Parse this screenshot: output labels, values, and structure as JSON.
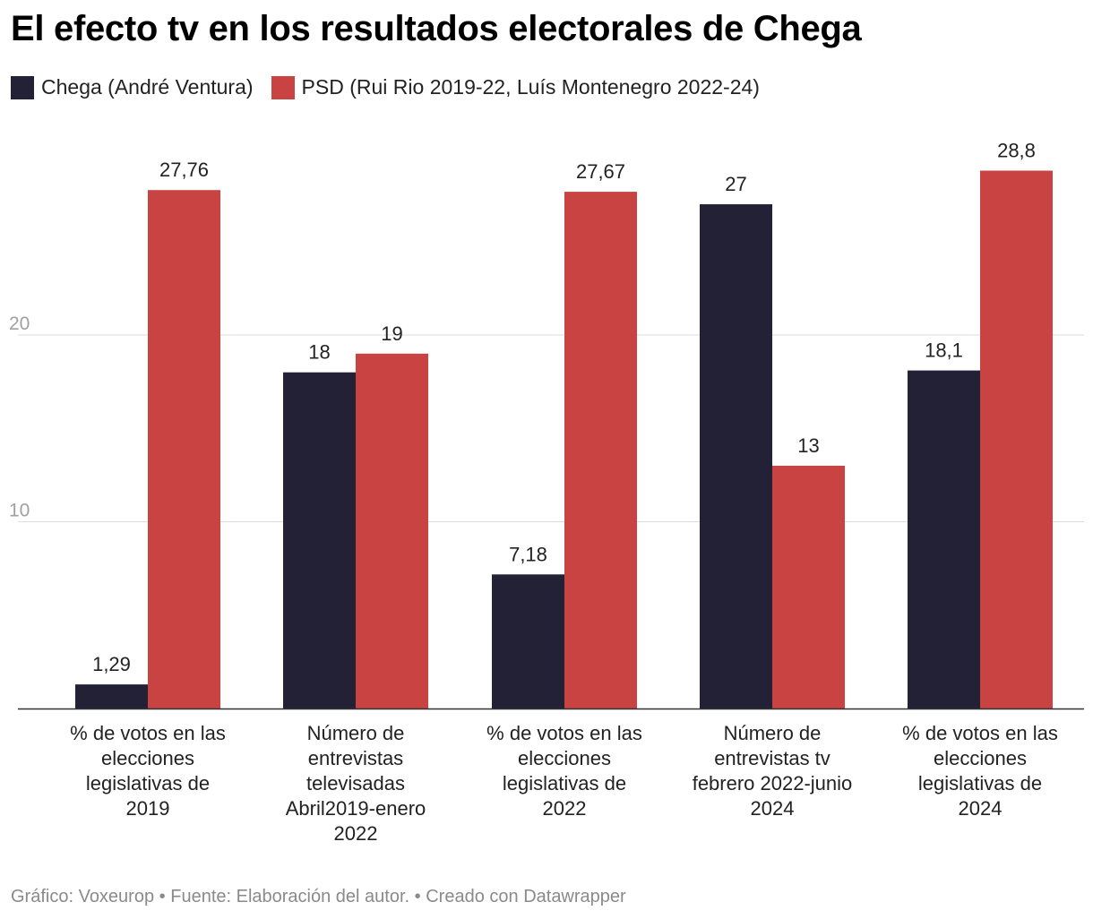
{
  "title": "El efecto tv en los resultados electorales de Chega",
  "footer": {
    "credit": "Gráfico: Voxeurop",
    "source": "Fuente: Elaboración del autor.",
    "tool": "Creado con Datawrapper",
    "separator": "•"
  },
  "chart_data": {
    "type": "bar",
    "categories": [
      [
        "% de votos en las",
        "elecciones",
        "legislativas de",
        "2019"
      ],
      [
        "Número de",
        "entrevistas",
        "televisadas",
        "Abril2019-enero",
        "2022"
      ],
      [
        "% de votos en las",
        "elecciones",
        "legislativas de",
        "2022"
      ],
      [
        "Número de",
        "entrevistas tv",
        "febrero 2022-junio",
        "2024"
      ],
      [
        "% de votos en las",
        "elecciones",
        "legislativas de",
        "2024"
      ]
    ],
    "series": [
      {
        "name": "Chega (André Ventura)",
        "color": "#222136",
        "values": [
          1.29,
          18,
          7.18,
          27,
          18.1
        ],
        "labels": [
          "1,29",
          "18",
          "7,18",
          "27",
          "18,1"
        ]
      },
      {
        "name": "PSD (Rui Rio 2019-22, Luís Montenegro 2022-24)",
        "color": "#c94343",
        "values": [
          27.76,
          19,
          27.67,
          13,
          28.8
        ],
        "labels": [
          "27,76",
          "19",
          "27,67",
          "13",
          "28,8"
        ]
      }
    ],
    "yticks": [
      10,
      20
    ],
    "ylim": [
      0,
      30
    ],
    "grid": true,
    "legend_position": "top-left"
  }
}
